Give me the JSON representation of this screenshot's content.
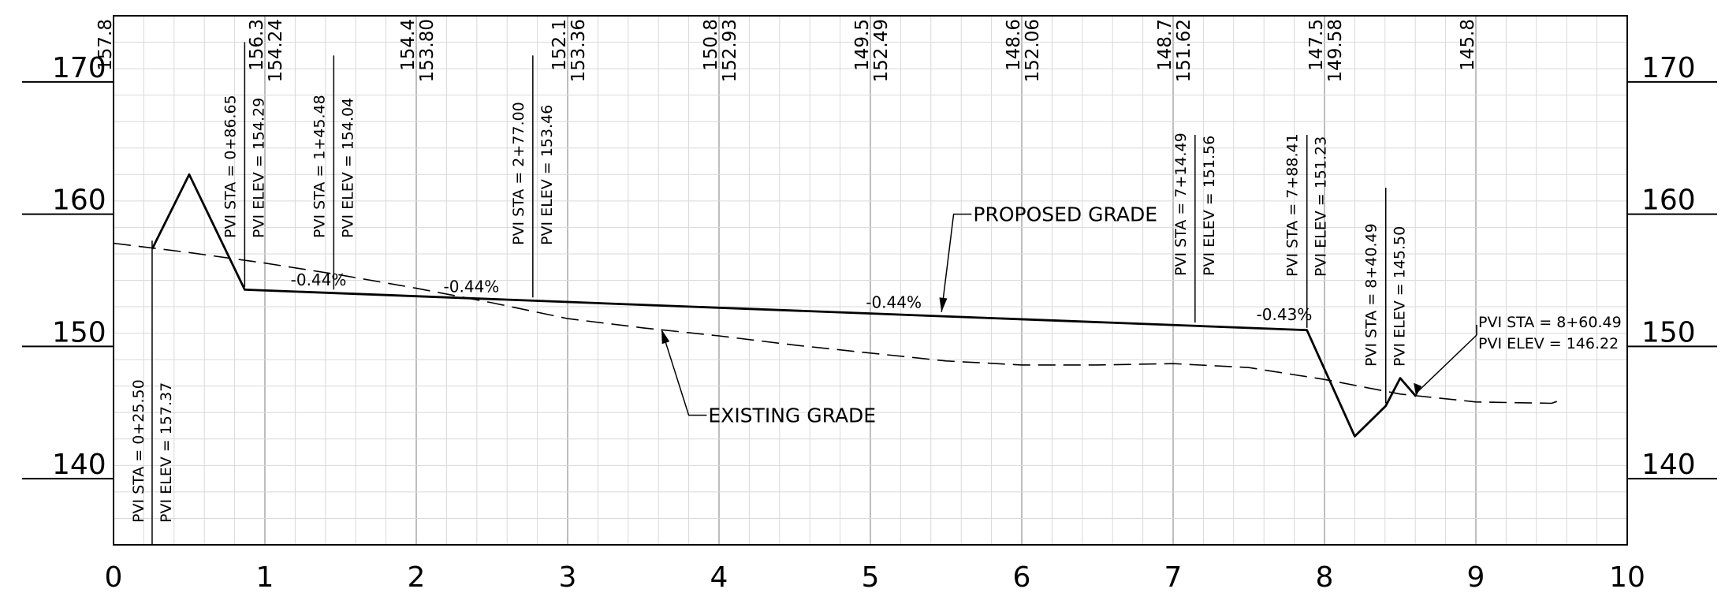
{
  "chart_data": {
    "type": "line",
    "title": "",
    "xlabel": "",
    "ylabel": "",
    "xlim": [
      0,
      10
    ],
    "ylim": [
      135,
      175
    ],
    "x_ticks": [
      "0",
      "1",
      "2",
      "3",
      "4",
      "5",
      "6",
      "7",
      "8",
      "9",
      "10"
    ],
    "y_ticks": [
      "140",
      "150",
      "160",
      "170"
    ],
    "station_elevations": [
      {
        "x": 0,
        "existing": "157.8"
      },
      {
        "x": 1,
        "existing": "156.3",
        "proposed": "154.24"
      },
      {
        "x": 2,
        "existing": "154.4",
        "proposed": "153.80"
      },
      {
        "x": 3,
        "existing": "152.1",
        "proposed": "153.36"
      },
      {
        "x": 4,
        "existing": "150.8",
        "proposed": "152.93"
      },
      {
        "x": 5,
        "existing": "149.5",
        "proposed": "152.49"
      },
      {
        "x": 6,
        "existing": "148.6",
        "proposed": "152.06"
      },
      {
        "x": 7,
        "existing": "148.7",
        "proposed": "151.62"
      },
      {
        "x": 8,
        "existing": "147.5",
        "proposed": "149.58"
      },
      {
        "x": 9,
        "existing": "145.8"
      }
    ],
    "series": [
      {
        "name": "PROPOSED GRADE",
        "x": [
          0.255,
          0.5,
          0.8665,
          7.8841,
          8.2,
          8.4049,
          8.5,
          8.6049
        ],
        "y": [
          157.37,
          163.0,
          154.29,
          151.23,
          143.2,
          145.5,
          147.6,
          146.22
        ]
      },
      {
        "name": "EXISTING GRADE",
        "x": [
          0,
          0.5,
          1,
          1.5,
          2,
          2.5,
          3,
          3.5,
          4,
          4.5,
          5,
          5.5,
          6,
          6.5,
          7,
          7.5,
          8,
          8.5,
          9,
          9.5,
          9.55
        ],
        "y": [
          157.8,
          157.1,
          156.3,
          155.4,
          154.4,
          153.3,
          152.1,
          151.4,
          150.8,
          150.1,
          149.5,
          148.9,
          148.6,
          148.6,
          148.7,
          148.4,
          147.5,
          146.4,
          145.8,
          145.7,
          145.9
        ]
      }
    ],
    "grade_labels": [
      {
        "text": "-0.44%",
        "x": 1.17,
        "y": 154.6
      },
      {
        "text": "-0.44%",
        "x": 2.18,
        "y": 154.1
      },
      {
        "text": "-0.44%",
        "x": 4.97,
        "y": 152.9
      },
      {
        "text": "-0.43%",
        "x": 7.55,
        "y": 152.0
      }
    ],
    "pvi": [
      {
        "sta": "PVI STA = 0+25.50",
        "elev": "PVI ELEV =  157.37",
        "x": 0.255,
        "orientation": "vertical-below",
        "y_top": 158.0,
        "y_bottom": 135.0
      },
      {
        "sta": "PVI STA = 0+86.65",
        "elev": "PVI ELEV =  154.29",
        "x": 0.8665,
        "orientation": "vertical-above",
        "y_top": 173.0,
        "y_bottom": 154.5
      },
      {
        "sta": "PVI STA = 1+45.48",
        "elev": "PVI ELEV =  154.04",
        "x": 1.4548,
        "orientation": "vertical-above",
        "y_top": 172.0,
        "y_bottom": 154.3
      },
      {
        "sta": "PVI STA = 2+77.00",
        "elev": "PVI ELEV =  153.46",
        "x": 2.77,
        "orientation": "vertical-above",
        "y_top": 172.0,
        "y_bottom": 153.7
      },
      {
        "sta": "PVI STA = 7+14.49",
        "elev": "PVI ELEV =  151.56",
        "x": 7.1449,
        "orientation": "vertical-above",
        "y_top": 166.0,
        "y_bottom": 151.8
      },
      {
        "sta": "PVI STA = 7+88.41",
        "elev": "PVI ELEV =  151.23",
        "x": 7.8841,
        "orientation": "vertical-above",
        "y_top": 166.0,
        "y_bottom": 151.4
      },
      {
        "sta": "PVI STA = 8+40.49",
        "elev": "PVI ELEV =  145.50",
        "x": 8.4049,
        "orientation": "vertical-above",
        "y_top": 162.0,
        "y_bottom": 145.7
      },
      {
        "sta": "PVI STA = 8+60.49",
        "elev": "PVI ELEV =  146.22",
        "x": 8.6049,
        "orientation": "horizontal"
      }
    ],
    "callouts": [
      {
        "text": "PROPOSED GRADE",
        "label_x": 5.7,
        "label_y": 160.0,
        "elbow_x": 5.55,
        "target_x": 5.47,
        "target_y": 152.6
      },
      {
        "text": "EXISTING GRADE",
        "label_x": 3.95,
        "label_y": 144.8,
        "elbow_x": 3.8,
        "target_x": 3.62,
        "target_y": 151.3
      }
    ],
    "grid": true,
    "legend": "none"
  }
}
